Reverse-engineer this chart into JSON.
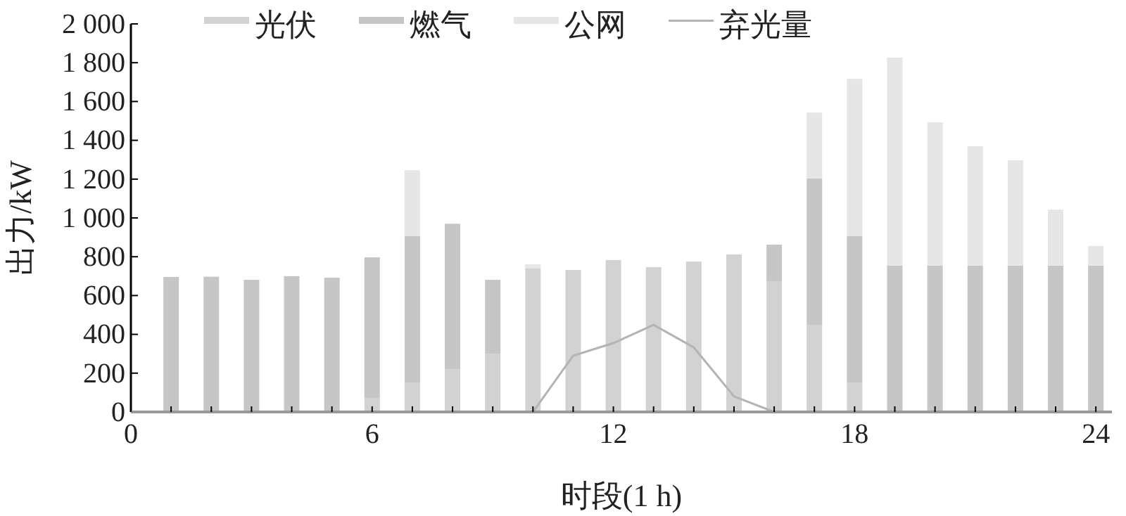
{
  "chart_data": {
    "type": "bar",
    "stacked": true,
    "xlabel": "时段(1 h)",
    "ylabel": "出力/kW",
    "x": [
      1,
      2,
      3,
      4,
      5,
      6,
      7,
      8,
      9,
      10,
      11,
      12,
      13,
      14,
      15,
      16,
      17,
      18,
      19,
      20,
      21,
      22,
      23,
      24
    ],
    "series": [
      {
        "name": "光伏",
        "color": "#d2d2d2",
        "values": [
          0,
          0,
          0,
          0,
          0,
          70,
          152,
          220,
          300,
          739,
          732,
          783,
          746,
          775,
          812,
          674,
          449,
          152,
          0,
          0,
          0,
          0,
          0,
          0
        ]
      },
      {
        "name": "燃气",
        "color": "#c6c6c6",
        "values": [
          696,
          697,
          681,
          700,
          692,
          727,
          754,
          750,
          381,
          0,
          0,
          0,
          0,
          0,
          0,
          188,
          754,
          754,
          754,
          754,
          754,
          754,
          754,
          754
        ]
      },
      {
        "name": "公网",
        "color": "#e6e6e6",
        "values": [
          0,
          0,
          0,
          0,
          0,
          0,
          340,
          0,
          0,
          22,
          0,
          0,
          0,
          0,
          0,
          0,
          340,
          811,
          1072,
          739,
          616,
          543,
          289,
          101
        ]
      },
      {
        "name": "弃光量",
        "type": "line",
        "color": "#b4b4b4",
        "x": [
          10,
          11,
          12,
          13,
          14,
          15,
          16
        ],
        "values": [
          0,
          290,
          355,
          449,
          333,
          80,
          0
        ]
      }
    ],
    "xlim": [
      0,
      24.4
    ],
    "xticks": [
      0,
      {
        "value": 1,
        "label": null
      },
      {
        "value": 2,
        "label": null
      },
      {
        "value": 3,
        "label": null
      },
      {
        "value": 4,
        "label": null
      },
      {
        "value": 5,
        "label": null
      },
      6,
      {
        "value": 7,
        "label": null
      },
      {
        "value": 8,
        "label": null
      },
      {
        "value": 9,
        "label": null
      },
      {
        "value": 10,
        "label": null
      },
      {
        "value": 11,
        "label": null
      },
      12,
      {
        "value": 13,
        "label": null
      },
      {
        "value": 14,
        "label": null
      },
      {
        "value": 15,
        "label": null
      },
      {
        "value": 16,
        "label": null
      },
      {
        "value": 17,
        "label": null
      },
      18,
      {
        "value": 19,
        "label": null
      },
      {
        "value": 20,
        "label": null
      },
      {
        "value": 21,
        "label": null
      },
      {
        "value": 22,
        "label": null
      },
      {
        "value": 23,
        "label": null
      },
      24
    ],
    "ylim": [
      0,
      2000
    ],
    "yticks": [
      0,
      200,
      400,
      600,
      800,
      {
        "value": 1000,
        "label": "1 000"
      },
      {
        "value": 1200,
        "label": "1 200"
      },
      {
        "value": 1400,
        "label": "1 400"
      },
      {
        "value": 1600,
        "label": "1 600"
      },
      {
        "value": 1800,
        "label": "1 800"
      },
      {
        "value": 2000,
        "label": "2 000"
      }
    ],
    "legend": "top",
    "grid": false
  }
}
